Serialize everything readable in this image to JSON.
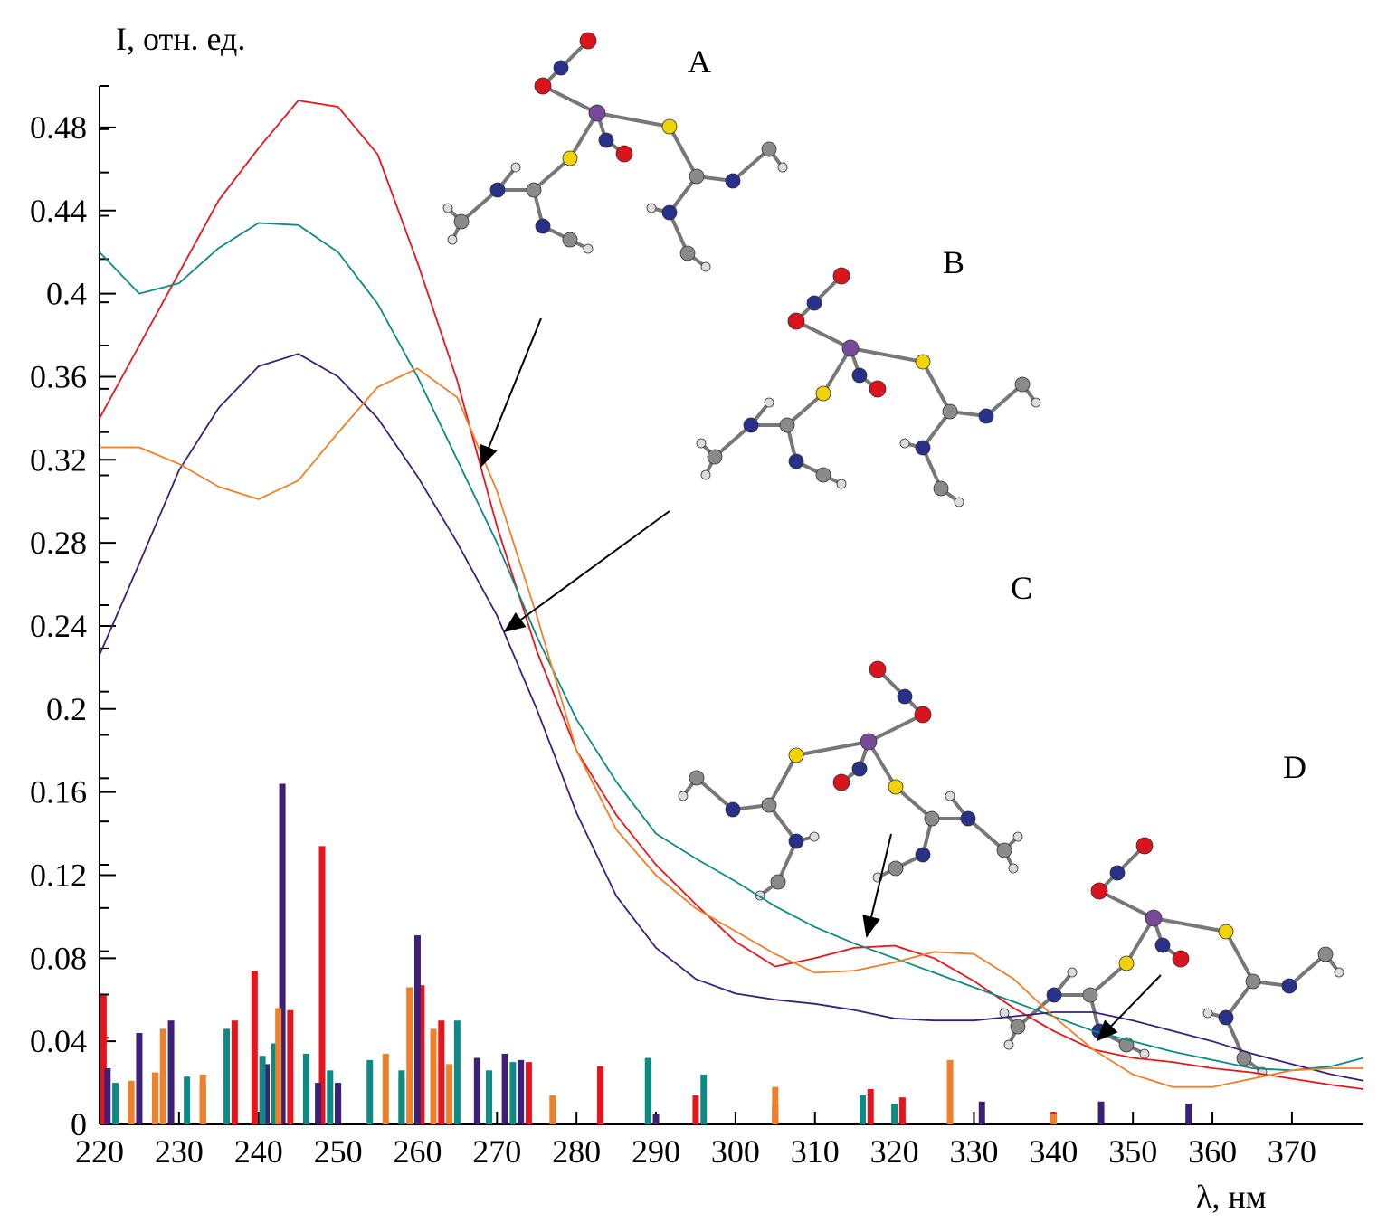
{
  "chart_data": [
    {
      "type": "line",
      "y_label": "I, отн. ед.",
      "x_label": "λ, нм",
      "annotations": [
        "A",
        "B",
        "C",
        "D"
      ],
      "xlim": [
        220,
        379
      ],
      "ylim": [
        0,
        0.5
      ],
      "xticks": [
        220,
        230,
        240,
        250,
        260,
        270,
        280,
        290,
        300,
        310,
        320,
        330,
        340,
        350,
        360,
        370
      ],
      "yticks": [
        0,
        0.04,
        0.08,
        0.12,
        0.16,
        0.2,
        0.24,
        0.28,
        0.32,
        0.36,
        0.4,
        0.44,
        0.48
      ],
      "x": [
        220,
        225,
        230,
        235,
        240,
        245,
        250,
        255,
        260,
        265,
        270,
        275,
        280,
        285,
        290,
        295,
        300,
        305,
        310,
        315,
        320,
        325,
        330,
        335,
        340,
        345,
        350,
        355,
        360,
        365,
        370,
        375,
        379
      ],
      "series": [
        {
          "color": "#e8141c",
          "values": [
            0.34,
            0.375,
            0.41,
            0.445,
            0.47,
            0.493,
            0.49,
            0.467,
            0.415,
            0.358,
            0.288,
            0.228,
            0.18,
            0.149,
            0.125,
            0.106,
            0.088,
            0.076,
            0.08,
            0.085,
            0.086,
            0.08,
            0.069,
            0.056,
            0.045,
            0.036,
            0.032,
            0.03,
            0.027,
            0.025,
            0.022,
            0.019,
            0.017
          ]
        },
        {
          "color": "#0e8a84",
          "values": [
            0.42,
            0.4,
            0.405,
            0.422,
            0.434,
            0.433,
            0.42,
            0.395,
            0.36,
            0.32,
            0.28,
            0.235,
            0.195,
            0.165,
            0.14,
            0.128,
            0.117,
            0.105,
            0.095,
            0.087,
            0.08,
            0.073,
            0.066,
            0.059,
            0.052,
            0.045,
            0.04,
            0.035,
            0.031,
            0.027,
            0.026,
            0.028,
            0.032
          ]
        },
        {
          "color": "#3d1f78",
          "values": [
            0.226,
            0.27,
            0.315,
            0.345,
            0.365,
            0.371,
            0.36,
            0.34,
            0.312,
            0.28,
            0.245,
            0.2,
            0.15,
            0.11,
            0.085,
            0.07,
            0.063,
            0.06,
            0.058,
            0.055,
            0.051,
            0.05,
            0.05,
            0.052,
            0.054,
            0.054,
            0.05,
            0.045,
            0.04,
            0.034,
            0.029,
            0.024,
            0.021
          ]
        },
        {
          "color": "#f07f2a",
          "values": [
            0.326,
            0.326,
            0.318,
            0.307,
            0.301,
            0.31,
            0.333,
            0.355,
            0.364,
            0.35,
            0.305,
            0.245,
            0.18,
            0.142,
            0.12,
            0.104,
            0.093,
            0.082,
            0.073,
            0.074,
            0.078,
            0.083,
            0.082,
            0.07,
            0.052,
            0.036,
            0.024,
            0.018,
            0.018,
            0.022,
            0.026,
            0.027,
            0.027
          ]
        }
      ]
    },
    {
      "type": "bar",
      "series": [
        {
          "color": "#e8141c",
          "x": [
            220.5,
            233,
            237,
            239.5,
            244,
            248,
            250,
            258,
            260.5,
            263,
            274,
            283,
            295,
            317,
            321,
            340
          ],
          "values": [
            0.062,
            0.02,
            0.05,
            0.074,
            0.055,
            0.134,
            0.017,
            0.022,
            0.067,
            0.05,
            0.03,
            0.028,
            0.014,
            0.017,
            0.013,
            0.006
          ]
        },
        {
          "color": "#3d1f78",
          "x": [
            221,
            225,
            229,
            241,
            243,
            247.5,
            250,
            260,
            267.5,
            271,
            273,
            290,
            305,
            331,
            346,
            357
          ],
          "values": [
            0.027,
            0.044,
            0.05,
            0.029,
            0.164,
            0.02,
            0.02,
            0.091,
            0.032,
            0.034,
            0.031,
            0.005,
            0.009,
            0.011,
            0.011,
            0.01
          ]
        },
        {
          "color": "#0e8a84",
          "x": [
            222,
            228,
            231,
            236,
            240.5,
            242,
            246,
            249,
            254,
            258,
            265,
            269,
            272,
            289,
            296,
            316,
            320
          ],
          "values": [
            0.02,
            0.024,
            0.023,
            0.046,
            0.033,
            0.039,
            0.034,
            0.026,
            0.031,
            0.026,
            0.05,
            0.026,
            0.03,
            0.032,
            0.024,
            0.014,
            0.01
          ]
        },
        {
          "color": "#f07f2a",
          "x": [
            224,
            227,
            228,
            233,
            242.5,
            256,
            259,
            262,
            264,
            277,
            305,
            327,
            340
          ],
          "values": [
            0.021,
            0.025,
            0.046,
            0.024,
            0.056,
            0.034,
            0.066,
            0.046,
            0.029,
            0.014,
            0.018,
            0.031,
            0.005
          ]
        }
      ]
    }
  ]
}
